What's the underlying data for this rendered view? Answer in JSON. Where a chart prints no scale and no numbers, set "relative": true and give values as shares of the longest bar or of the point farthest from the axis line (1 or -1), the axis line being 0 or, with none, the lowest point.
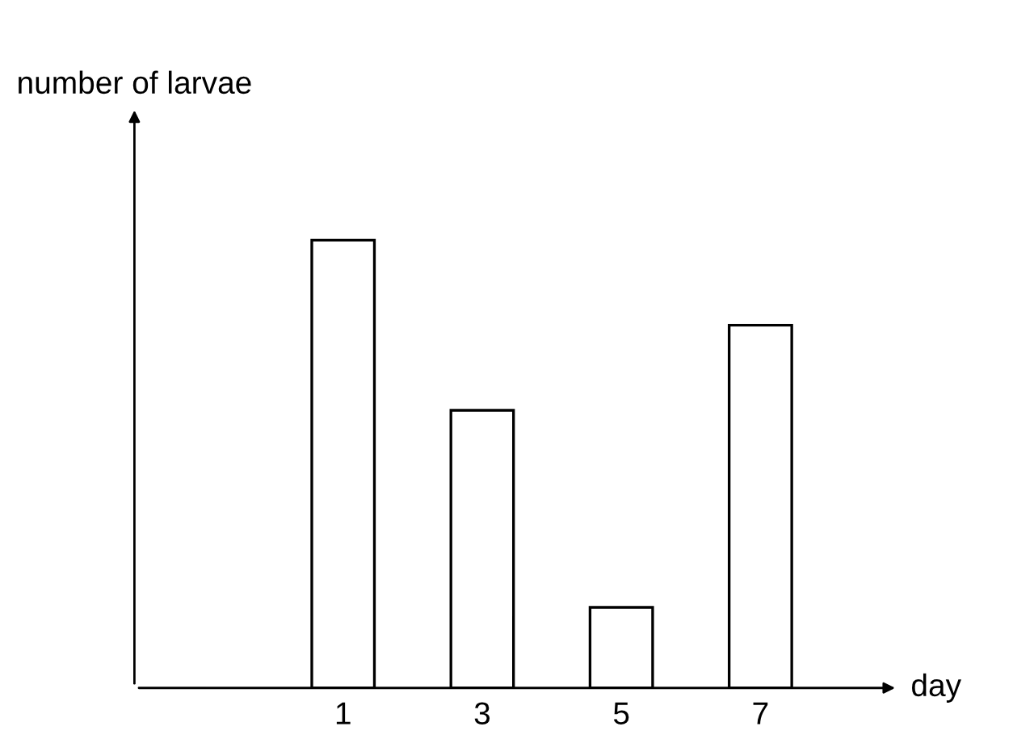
{
  "chart_data": {
    "type": "bar",
    "relative": true,
    "categories": [
      "1",
      "3",
      "5",
      "7"
    ],
    "values": [
      1,
      0.62,
      0.18,
      0.81
    ],
    "color": "#ffffff",
    "xlabel": "day",
    "ylabel": "number of larvae",
    "grid": false,
    "legend": false
  }
}
